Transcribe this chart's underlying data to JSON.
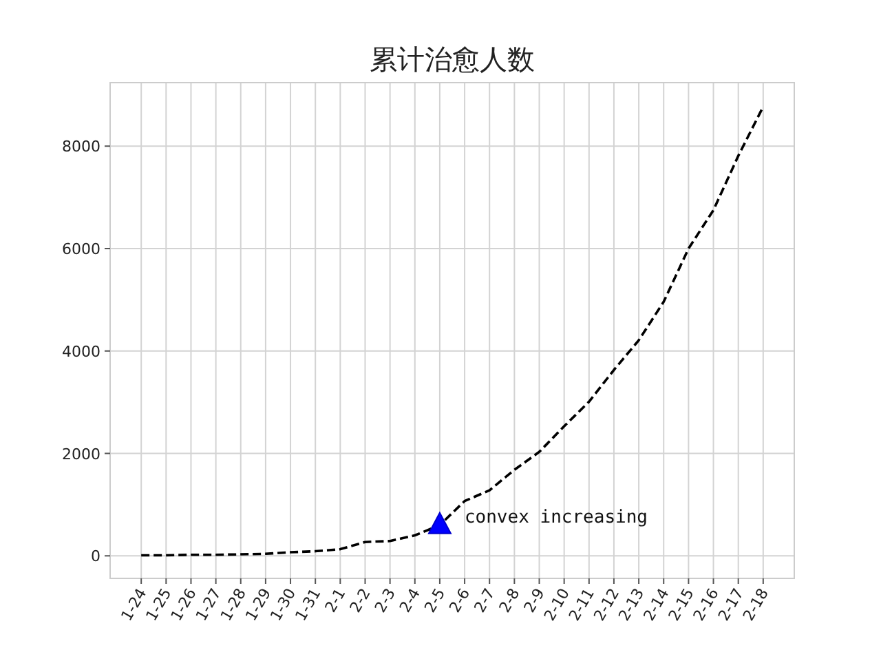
{
  "chart_data": {
    "type": "line",
    "title": "累计治愈人数",
    "categories": [
      "1-24",
      "1-25",
      "1-26",
      "1-27",
      "1-28",
      "1-29",
      "1-30",
      "1-31",
      "2-1",
      "2-2",
      "2-3",
      "2-4",
      "2-5",
      "2-6",
      "2-7",
      "2-8",
      "2-9",
      "2-10",
      "2-11",
      "2-12",
      "2-13",
      "2-14",
      "2-15",
      "2-16",
      "2-17",
      "2-18"
    ],
    "series": [
      {
        "color": "#000000",
        "values": [
          10,
          10,
          20,
          20,
          30,
          40,
          70,
          90,
          130,
          270,
          290,
          400,
          600,
          1070,
          1280,
          1680,
          2030,
          2530,
          3010,
          3630,
          4210,
          4960,
          6000,
          6750,
          7810,
          8770
        ]
      }
    ],
    "line_style": "dashed",
    "marker": "none",
    "ylim": [
      -440,
      9240
    ],
    "yticks": [
      0,
      2000,
      4000,
      6000,
      8000
    ],
    "grid": true,
    "annotations": [
      {
        "text": "convex increasing",
        "x": "2-5",
        "y": 600
      }
    ]
  }
}
